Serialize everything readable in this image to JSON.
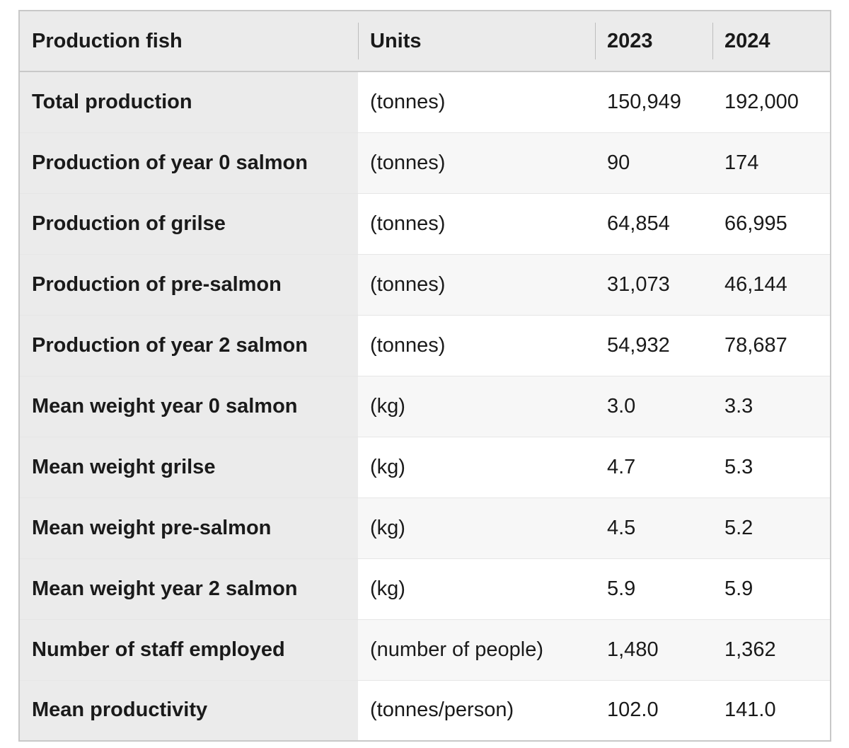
{
  "table": {
    "header": [
      "Production fish",
      "Units",
      "2023",
      "2024"
    ],
    "rows": [
      [
        "Total production",
        "(tonnes)",
        "150,949",
        "192,000"
      ],
      [
        "Production of year 0 salmon",
        "(tonnes)",
        "90",
        "174"
      ],
      [
        "Production of grilse",
        "(tonnes)",
        "64,854",
        "66,995"
      ],
      [
        "Production of pre-salmon",
        "(tonnes)",
        "31,073",
        "46,144"
      ],
      [
        "Production of year 2 salmon",
        "(tonnes)",
        "54,932",
        "78,687"
      ],
      [
        "Mean weight year 0 salmon",
        "(kg)",
        "3.0",
        "3.3"
      ],
      [
        "Mean weight grilse",
        "(kg)",
        "4.7",
        "5.3"
      ],
      [
        "Mean weight pre-salmon",
        "(kg)",
        "4.5",
        "5.2"
      ],
      [
        "Mean weight year 2 salmon",
        "(kg)",
        "5.9",
        "5.9"
      ],
      [
        "Number of staff employed",
        "(number of people)",
        "1,480",
        "1,362"
      ],
      [
        "Mean productivity",
        "(tonnes/person)",
        "102.0",
        "141.0"
      ]
    ]
  }
}
